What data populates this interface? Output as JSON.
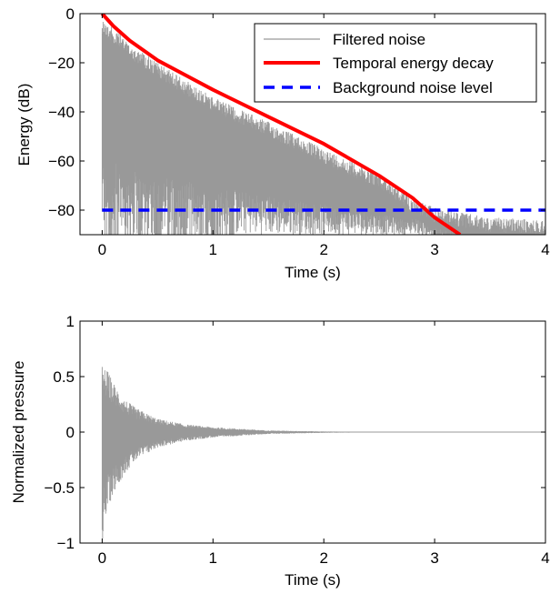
{
  "colors": {
    "noise": "#999999",
    "decay": "#ff0000",
    "background": "#0000ff",
    "axes": "#000000"
  },
  "chart_data": [
    {
      "type": "line",
      "xlabel": "Time (s)",
      "ylabel": "Energy (dB)",
      "xlim": [
        -0.2,
        4
      ],
      "ylim": [
        -90,
        0
      ],
      "xticks": [
        0,
        1,
        2,
        3,
        4
      ],
      "yticks": [
        0,
        -20,
        -40,
        -60,
        -80
      ],
      "xtick_labels": [
        "0",
        "1",
        "2",
        "3",
        "4"
      ],
      "ytick_labels": [
        "0",
        "−20",
        "−40",
        "−60",
        "−80"
      ],
      "grid": false,
      "legend_position": "top-right",
      "series": [
        {
          "name": "Filtered noise",
          "style": "thin-gray-noise",
          "envelope_db": {
            "x": [
              0,
              0.25,
              0.5,
              1.0,
              1.5,
              2.0,
              2.5,
              2.8,
              3.0,
              3.5,
              4.0
            ],
            "upper": [
              -2,
              -12,
              -20,
              -34,
              -44,
              -55,
              -65,
              -75,
              -79,
              -83,
              -84
            ],
            "lower": [
              -90,
              -90,
              -90,
              -90,
              -90,
              -90,
              -90,
              -90,
              -90,
              -90,
              -90
            ]
          }
        },
        {
          "name": "Temporal energy decay",
          "style": "thick-red",
          "x": [
            0,
            0.1,
            0.25,
            0.5,
            0.75,
            1.0,
            1.5,
            2.0,
            2.5,
            2.8,
            3.0,
            3.23
          ],
          "y": [
            0,
            -5,
            -11,
            -19,
            -25,
            -31,
            -42,
            -53,
            -66,
            -75,
            -83,
            -90
          ]
        },
        {
          "name": "Background noise level",
          "style": "dashed-blue",
          "x": [
            0,
            4
          ],
          "y": [
            -80,
            -80
          ]
        }
      ]
    },
    {
      "type": "line",
      "xlabel": "Time (s)",
      "ylabel": "Normalized pressure",
      "xlim": [
        -0.2,
        4
      ],
      "ylim": [
        -1,
        1
      ],
      "xticks": [
        0,
        1,
        2,
        3,
        4
      ],
      "yticks": [
        1,
        0.5,
        0,
        -0.5,
        -1
      ],
      "xtick_labels": [
        "0",
        "1",
        "2",
        "3",
        "4"
      ],
      "ytick_labels": [
        "1",
        "0.5",
        "0",
        "−0.5",
        "−1"
      ],
      "grid": false,
      "series": [
        {
          "name": "Filtered noise",
          "style": "thin-gray-noise",
          "envelope": {
            "x": [
              0,
              0.05,
              0.1,
              0.2,
              0.3,
              0.5,
              0.75,
              1.0,
              1.5,
              2.0,
              2.5,
              4.0
            ],
            "upper": [
              0.6,
              0.55,
              0.45,
              0.3,
              0.22,
              0.12,
              0.07,
              0.045,
              0.015,
              0.006,
              0.002,
              0.0
            ],
            "lower": [
              -1.0,
              -0.7,
              -0.55,
              -0.38,
              -0.26,
              -0.14,
              -0.08,
              -0.05,
              -0.017,
              -0.007,
              -0.002,
              0.0
            ]
          }
        }
      ]
    }
  ]
}
